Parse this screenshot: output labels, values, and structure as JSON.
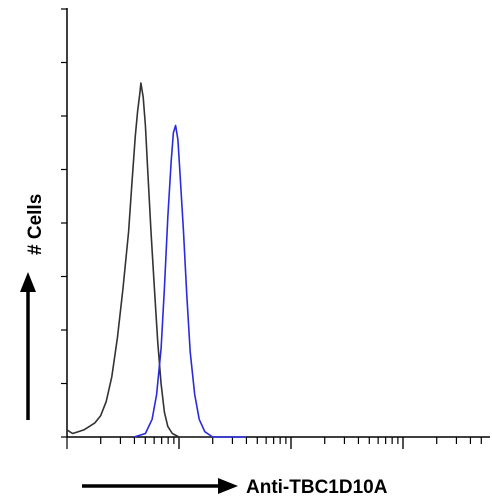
{
  "chart_data": {
    "type": "line",
    "title": "",
    "xlabel": "Anti-TBC1D10A",
    "ylabel": "# Cells",
    "x_scale": "log",
    "grid": false,
    "legend": "none",
    "y_ticks": 8,
    "series": [
      {
        "color": "#333333",
        "points": [
          [
            0.0,
            0.02
          ],
          [
            0.05,
            0.01
          ],
          [
            0.1,
            0.015
          ],
          [
            0.15,
            0.02
          ],
          [
            0.2,
            0.03
          ],
          [
            0.25,
            0.04
          ],
          [
            0.3,
            0.06
          ],
          [
            0.35,
            0.1
          ],
          [
            0.4,
            0.17
          ],
          [
            0.45,
            0.28
          ],
          [
            0.5,
            0.42
          ],
          [
            0.55,
            0.58
          ],
          [
            0.58,
            0.72
          ],
          [
            0.61,
            0.85
          ],
          [
            0.63,
            0.92
          ],
          [
            0.65,
            0.97
          ],
          [
            0.66,
            1.0
          ],
          [
            0.68,
            0.96
          ],
          [
            0.7,
            0.88
          ],
          [
            0.72,
            0.76
          ],
          [
            0.75,
            0.58
          ],
          [
            0.78,
            0.42
          ],
          [
            0.81,
            0.27
          ],
          [
            0.84,
            0.15
          ],
          [
            0.87,
            0.07
          ],
          [
            0.9,
            0.03
          ],
          [
            0.94,
            0.01
          ],
          [
            1.0,
            0.0
          ],
          [
            1.3,
            0.0
          ]
        ]
      },
      {
        "color": "#2a2ae0",
        "points": [
          [
            0.6,
            0.0
          ],
          [
            0.7,
            0.01
          ],
          [
            0.76,
            0.05
          ],
          [
            0.8,
            0.12
          ],
          [
            0.84,
            0.25
          ],
          [
            0.87,
            0.42
          ],
          [
            0.9,
            0.62
          ],
          [
            0.93,
            0.78
          ],
          [
            0.95,
            0.86
          ],
          [
            0.97,
            0.88
          ],
          [
            0.99,
            0.84
          ],
          [
            1.01,
            0.74
          ],
          [
            1.04,
            0.58
          ],
          [
            1.07,
            0.4
          ],
          [
            1.1,
            0.24
          ],
          [
            1.14,
            0.12
          ],
          [
            1.18,
            0.05
          ],
          [
            1.23,
            0.015
          ],
          [
            1.3,
            0.0
          ],
          [
            1.6,
            0.0
          ]
        ]
      }
    ]
  }
}
